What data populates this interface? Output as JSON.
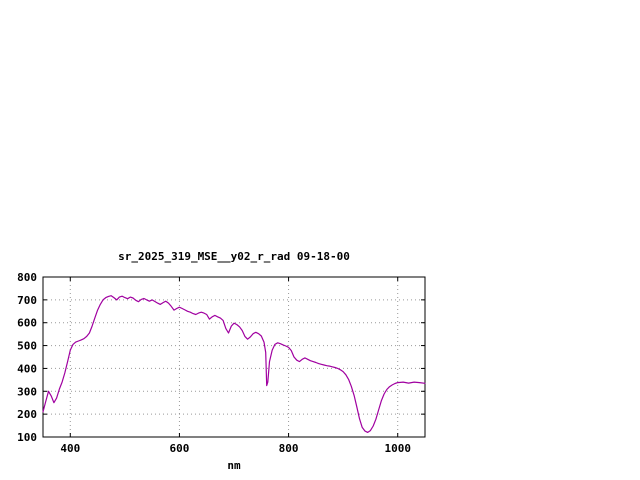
{
  "page": {
    "background": "#ffffff"
  },
  "chart_data": {
    "type": "line",
    "title": "sr_2025_319_MSE__y02_r_rad 09-18-00",
    "xlabel": "nm",
    "ylabel": "",
    "xlim": [
      350,
      1050
    ],
    "ylim": [
      100,
      800
    ],
    "xticks": [
      400,
      600,
      800,
      1000
    ],
    "yticks": [
      100,
      200,
      300,
      400,
      500,
      600,
      700,
      800
    ],
    "grid": true,
    "legend_position": "none",
    "line_color": "#a000a0",
    "axis_color": "#000000",
    "grid_color": "#999999",
    "series": [
      {
        "name": "sr_2025_319_MSE__y02_r_rad",
        "x": [
          350,
          355,
          360,
          365,
          370,
          375,
          380,
          385,
          390,
          395,
          400,
          405,
          410,
          415,
          420,
          425,
          430,
          435,
          440,
          445,
          450,
          455,
          460,
          465,
          470,
          475,
          480,
          485,
          490,
          495,
          500,
          505,
          510,
          515,
          520,
          525,
          530,
          535,
          540,
          545,
          550,
          555,
          560,
          565,
          570,
          575,
          580,
          585,
          590,
          595,
          600,
          605,
          610,
          615,
          620,
          625,
          630,
          635,
          640,
          645,
          650,
          655,
          660,
          665,
          670,
          675,
          680,
          685,
          690,
          695,
          700,
          705,
          710,
          715,
          720,
          725,
          730,
          735,
          740,
          745,
          750,
          755,
          758,
          760,
          762,
          765,
          770,
          775,
          780,
          785,
          790,
          795,
          800,
          805,
          810,
          815,
          820,
          825,
          830,
          835,
          840,
          845,
          850,
          855,
          860,
          865,
          870,
          875,
          880,
          885,
          890,
          895,
          900,
          905,
          910,
          915,
          920,
          925,
          930,
          935,
          940,
          945,
          950,
          955,
          960,
          965,
          970,
          975,
          980,
          985,
          990,
          995,
          1000,
          1010,
          1020,
          1030,
          1040,
          1050
        ],
        "y": [
          210,
          255,
          300,
          280,
          250,
          270,
          310,
          340,
          380,
          430,
          480,
          505,
          515,
          520,
          525,
          530,
          540,
          555,
          585,
          620,
          655,
          680,
          700,
          710,
          715,
          718,
          710,
          700,
          712,
          716,
          710,
          705,
          712,
          708,
          698,
          692,
          702,
          706,
          700,
          694,
          700,
          693,
          686,
          680,
          688,
          694,
          686,
          672,
          655,
          662,
          668,
          662,
          656,
          650,
          646,
          640,
          636,
          642,
          646,
          642,
          636,
          616,
          626,
          632,
          626,
          620,
          610,
          575,
          555,
          585,
          598,
          592,
          582,
          566,
          540,
          528,
          538,
          552,
          558,
          552,
          542,
          515,
          470,
          325,
          340,
          430,
          480,
          505,
          512,
          508,
          503,
          498,
          492,
          478,
          450,
          436,
          430,
          440,
          446,
          440,
          434,
          430,
          426,
          421,
          418,
          415,
          412,
          410,
          407,
          404,
          400,
          394,
          386,
          372,
          352,
          322,
          282,
          232,
          180,
          142,
          126,
          120,
          128,
          148,
          178,
          218,
          258,
          288,
          308,
          320,
          328,
          334,
          338,
          340,
          336,
          340,
          338,
          335
        ]
      }
    ]
  }
}
